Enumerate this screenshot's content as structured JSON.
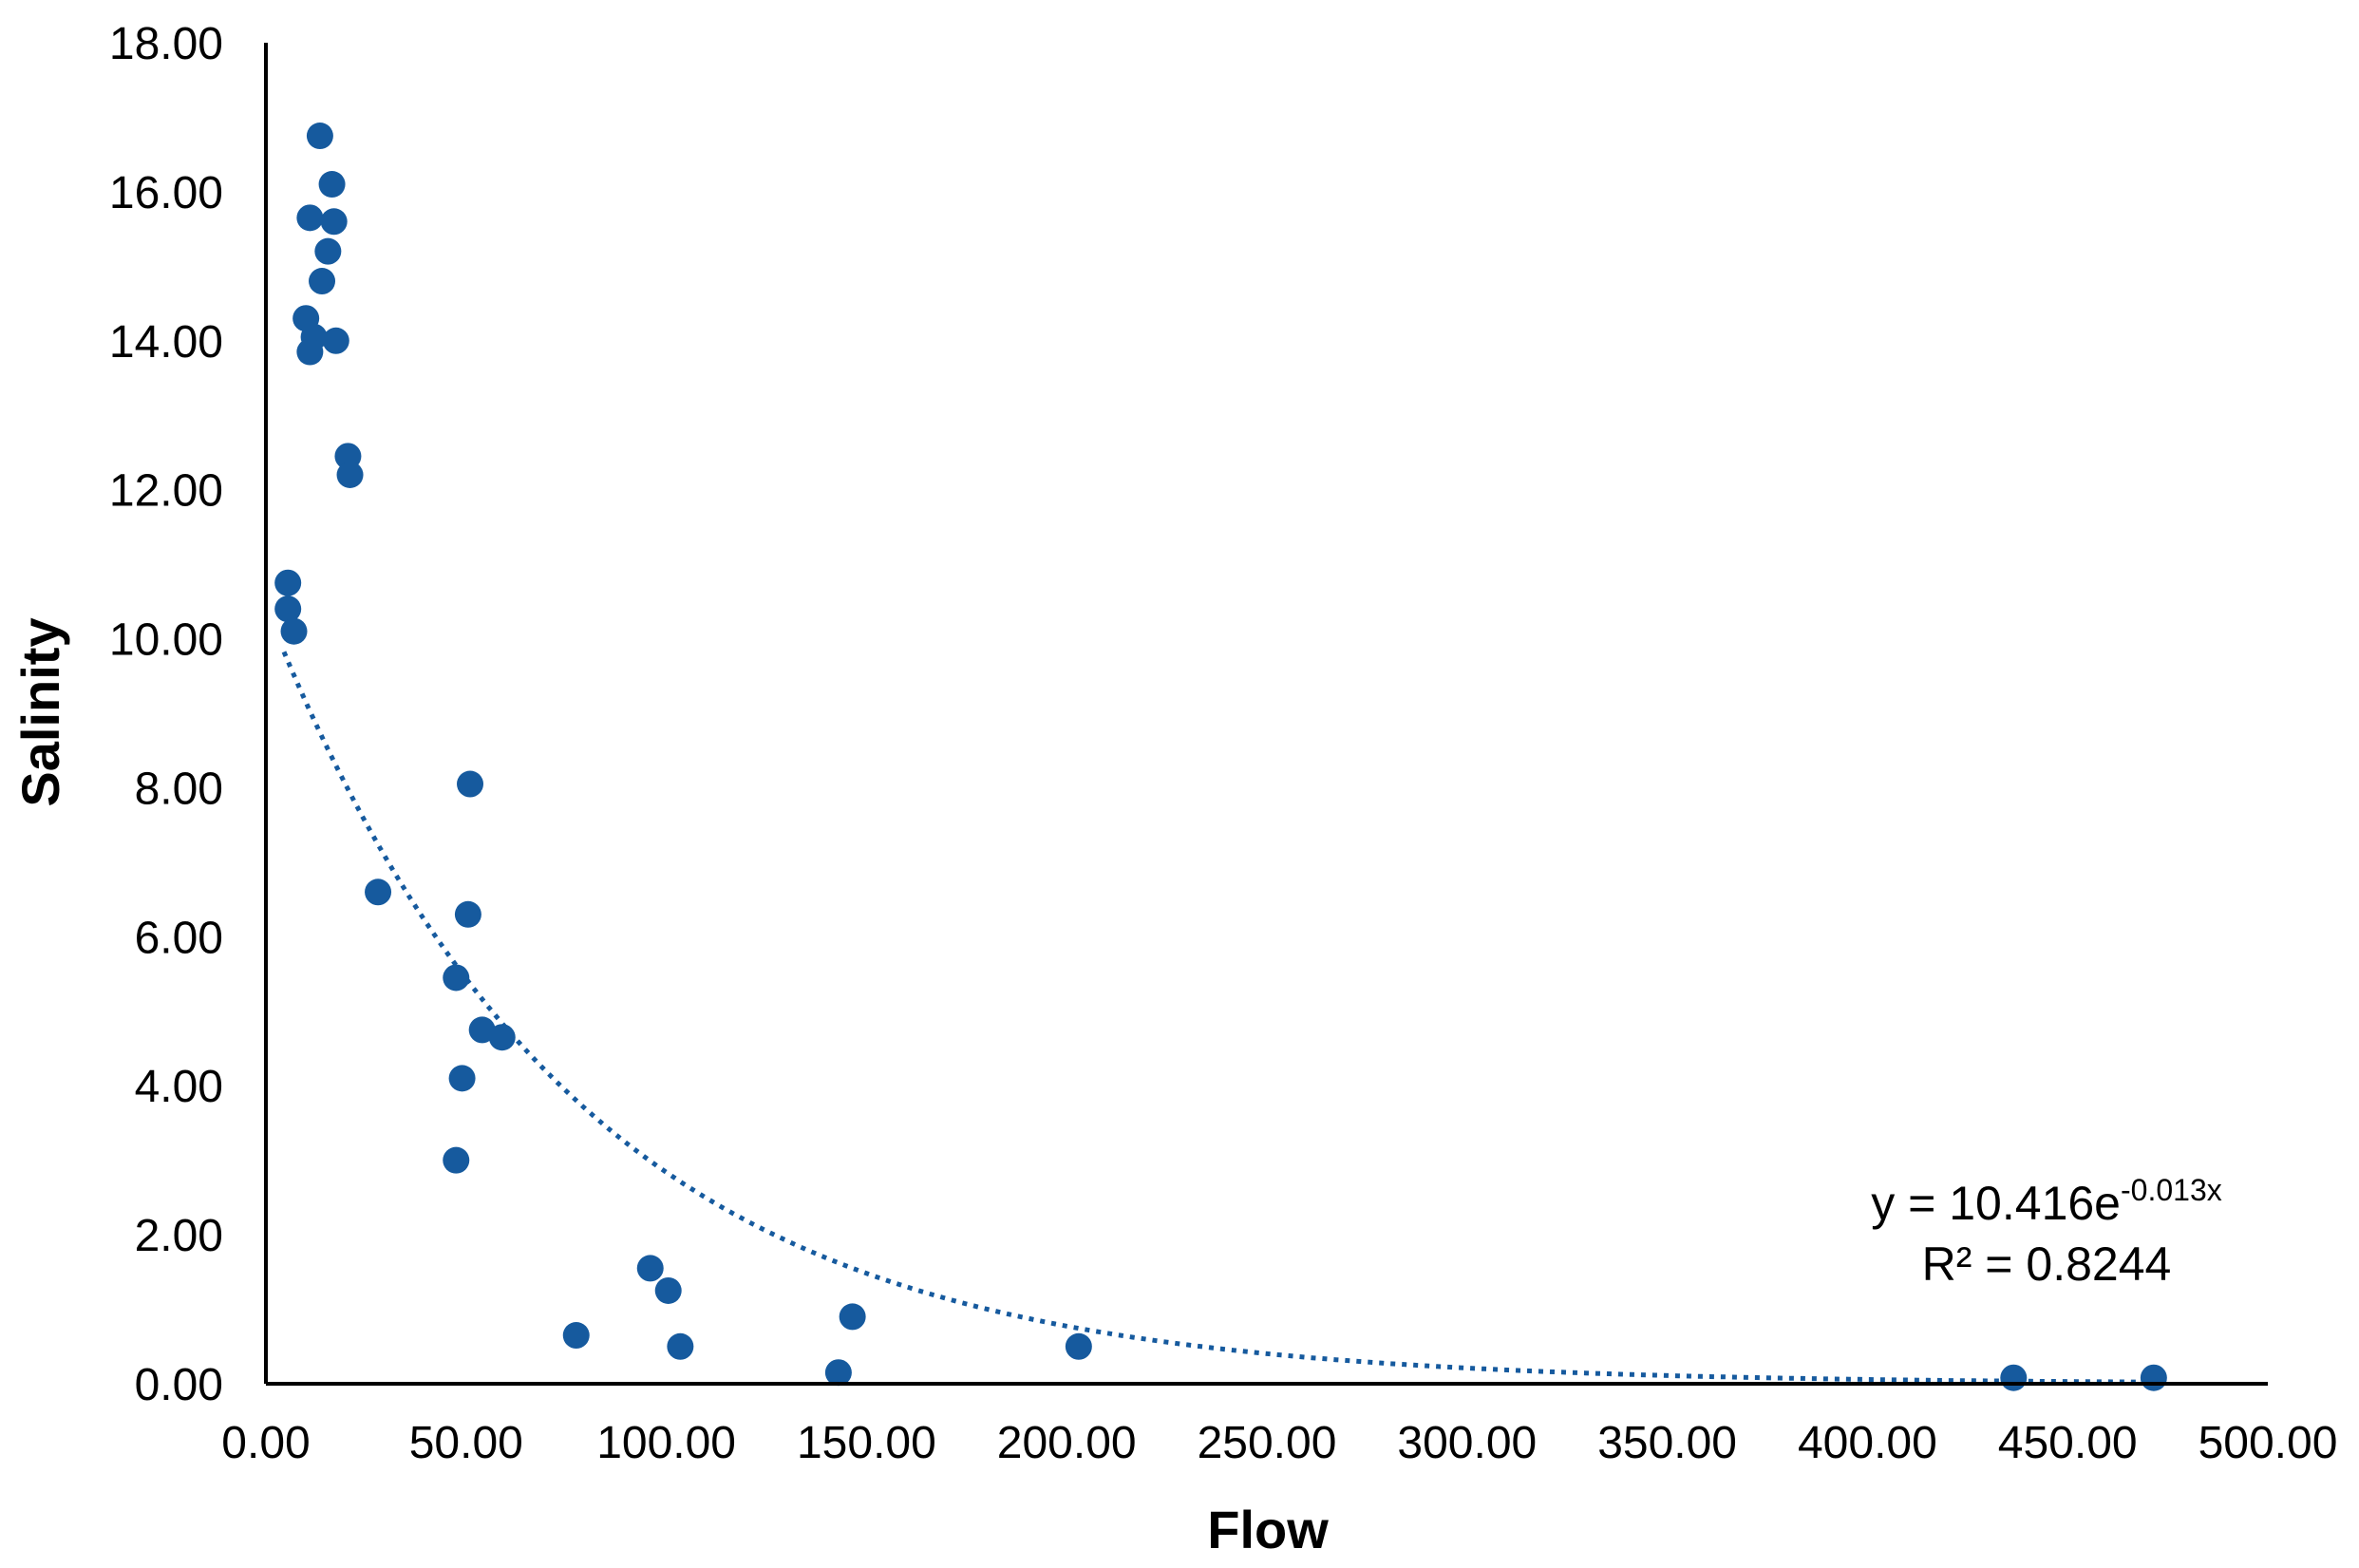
{
  "chart_data": {
    "type": "scatter",
    "title": "",
    "xlabel": "Flow",
    "ylabel": "Salinity",
    "xlim": [
      0,
      500
    ],
    "ylim": [
      0,
      18
    ],
    "x_ticks": [
      "0.00",
      "50.00",
      "100.00",
      "150.00",
      "200.00",
      "250.00",
      "300.00",
      "350.00",
      "400.00",
      "450.00",
      "500.00"
    ],
    "y_ticks": [
      "0.00",
      "2.00",
      "4.00",
      "6.00",
      "8.00",
      "10.00",
      "12.00",
      "14.00",
      "16.00",
      "18.00"
    ],
    "grid": false,
    "legend": "none",
    "marker_color": "#165a9e",
    "points": [
      {
        "x": 13.5,
        "y": 16.75
      },
      {
        "x": 16.5,
        "y": 16.1
      },
      {
        "x": 11.0,
        "y": 15.65
      },
      {
        "x": 17.0,
        "y": 15.6
      },
      {
        "x": 15.5,
        "y": 15.2
      },
      {
        "x": 14.0,
        "y": 14.8
      },
      {
        "x": 10.0,
        "y": 14.3
      },
      {
        "x": 12.0,
        "y": 14.05
      },
      {
        "x": 17.5,
        "y": 14.0
      },
      {
        "x": 11.0,
        "y": 13.85
      },
      {
        "x": 20.5,
        "y": 12.45
      },
      {
        "x": 21.0,
        "y": 12.2
      },
      {
        "x": 5.5,
        "y": 10.75
      },
      {
        "x": 5.5,
        "y": 10.4
      },
      {
        "x": 7.0,
        "y": 10.1
      },
      {
        "x": 51.0,
        "y": 8.05
      },
      {
        "x": 28.0,
        "y": 6.6
      },
      {
        "x": 50.5,
        "y": 6.3
      },
      {
        "x": 47.5,
        "y": 5.45
      },
      {
        "x": 54.0,
        "y": 4.75
      },
      {
        "x": 59.0,
        "y": 4.65
      },
      {
        "x": 49.0,
        "y": 4.1
      },
      {
        "x": 47.5,
        "y": 3.0
      },
      {
        "x": 96.0,
        "y": 1.55
      },
      {
        "x": 100.5,
        "y": 1.25
      },
      {
        "x": 77.5,
        "y": 0.65
      },
      {
        "x": 146.5,
        "y": 0.9
      },
      {
        "x": 103.5,
        "y": 0.5
      },
      {
        "x": 143.0,
        "y": 0.15
      },
      {
        "x": 203.0,
        "y": 0.5
      },
      {
        "x": 436.5,
        "y": 0.08
      },
      {
        "x": 471.5,
        "y": 0.08
      }
    ],
    "trendline": {
      "type": "exponential",
      "a": 10.416,
      "b": -0.013,
      "style": "dotted",
      "color": "#165a9e",
      "x_range": [
        4.5,
        471.5
      ]
    },
    "annotation": {
      "equation_prefix": "y = 10.416e",
      "equation_exponent": "-0.013x",
      "r_squared": "R² = 0.8244"
    }
  }
}
